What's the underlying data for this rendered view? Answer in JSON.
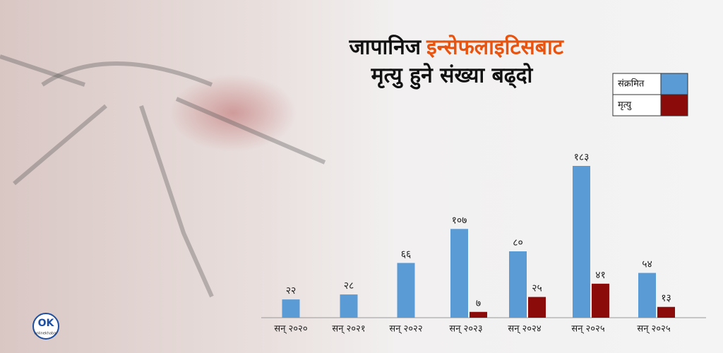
{
  "chart_data": {
    "type": "bar",
    "title_lead": "जापानिज",
    "title_highlight": "इन्सेफलाइटिसबाट",
    "title_line2": "मृत्यु हुने संख्या बढ्दो",
    "categories": [
      "सन् २०२०",
      "सन् २०२१",
      "सन् २०२२",
      "सन् २०२३",
      "सन् २०२४",
      "सन् २०२५",
      "सन् २०२५"
    ],
    "series": [
      {
        "name": "संक्रमित",
        "color": "#5b9bd5",
        "values": [
          22,
          28,
          66,
          107,
          80,
          183,
          54
        ],
        "value_labels": [
          "२२",
          "२८",
          "६६",
          "१०७",
          "८०",
          "१८३",
          "५४"
        ]
      },
      {
        "name": "मृत्यु",
        "color": "#8b0a0a",
        "values": [
          null,
          null,
          null,
          7,
          25,
          41,
          13
        ],
        "value_labels": [
          null,
          null,
          null,
          "७",
          "२५",
          "४१",
          "१३"
        ]
      }
    ],
    "logo": {
      "mark": "OK",
      "name": "onlinekhabar"
    }
  }
}
